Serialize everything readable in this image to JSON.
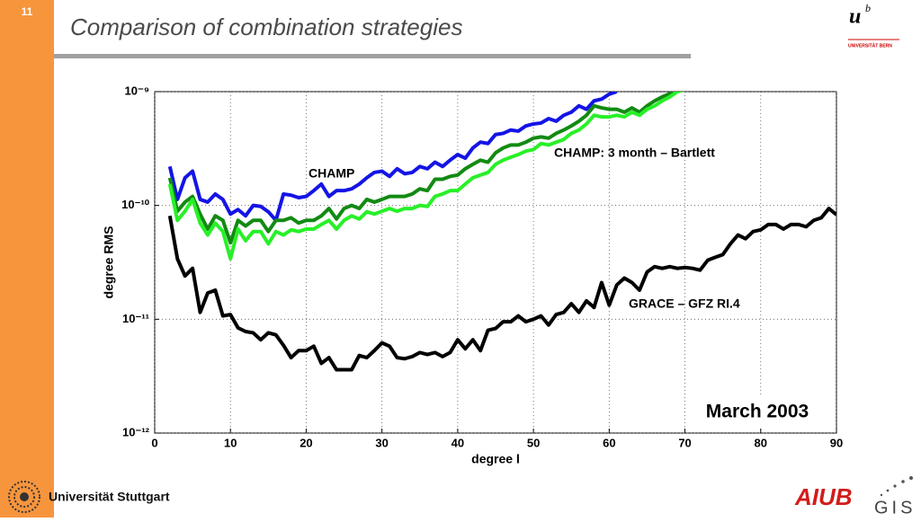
{
  "slide": {
    "page_number": "11",
    "title": "Comparison of combination strategies",
    "logo_bern_mark": "u",
    "logo_bern_sup": "b",
    "logo_bern_text": "UNIVERSITÄT BERN",
    "logo_stuttgart": "Universität Stuttgart",
    "logo_aiub": "AIUB",
    "logo_gis": "GIS"
  },
  "chart_data": {
    "type": "line",
    "xlabel": "degree l",
    "ylabel": "degree RMS",
    "xlim": [
      0,
      90
    ],
    "xticks": [
      0,
      10,
      20,
      30,
      40,
      50,
      60,
      70,
      80,
      90
    ],
    "ylim": [
      1e-12,
      1e-09
    ],
    "log_y": true,
    "grid": true,
    "yticks": [
      {
        "value": 1e-12,
        "label": "10⁻¹²"
      },
      {
        "value": 1e-11,
        "label": "10⁻¹¹"
      },
      {
        "value": 1e-10,
        "label": "10⁻¹⁰"
      },
      {
        "value": 1e-09,
        "label": "10⁻⁹"
      }
    ],
    "annotations": [
      "CHAMP",
      "CHAMP: 3 month – Bartlett",
      "GRACE – GFZ RI.4",
      "March 2003"
    ],
    "series": [
      {
        "color": "#1414e6",
        "x": [
          2,
          3,
          4,
          5,
          6,
          7,
          8,
          9,
          10,
          11,
          12,
          13,
          14,
          15,
          16,
          17,
          18,
          19,
          20,
          21,
          22,
          23,
          24,
          25,
          26,
          27,
          28,
          29,
          30,
          31,
          32,
          33,
          34,
          35,
          36,
          37,
          38,
          39,
          40,
          41,
          42,
          43,
          44,
          45,
          46,
          47,
          48,
          49,
          50,
          51,
          52,
          53,
          54,
          55,
          56,
          57,
          58,
          59,
          60,
          61
        ],
        "values": [
          2.2e-10,
          1.13e-10,
          1.75e-10,
          2e-10,
          1.13e-10,
          1.07e-10,
          1.26e-10,
          1.13e-10,
          8.4e-11,
          9.2e-11,
          8.1e-11,
          1e-10,
          9.8e-11,
          8.8e-11,
          7.4e-11,
          1.26e-10,
          1.23e-10,
          1.17e-10,
          1.2e-10,
          1.35e-10,
          1.54e-10,
          1.2e-10,
          1.35e-10,
          1.35e-10,
          1.4e-10,
          1.54e-10,
          1.75e-10,
          1.95e-10,
          2e-10,
          1.8e-10,
          2.1e-10,
          1.9e-10,
          1.95e-10,
          2.2e-10,
          2.1e-10,
          2.4e-10,
          2.2e-10,
          2.5e-10,
          2.8e-10,
          2.6e-10,
          3.2e-10,
          3.6e-10,
          3.5e-10,
          4.2e-10,
          4.3e-10,
          4.6e-10,
          4.5e-10,
          5e-10,
          5.2e-10,
          5.3e-10,
          5.8e-10,
          5.5e-10,
          6.2e-10,
          6.6e-10,
          7.5e-10,
          7e-10,
          8.3e-10,
          8.6e-10,
          9.5e-10,
          1e-09
        ]
      },
      {
        "color": "#128a12",
        "x": [
          2,
          3,
          4,
          5,
          6,
          7,
          8,
          9,
          10,
          11,
          12,
          13,
          14,
          15,
          16,
          17,
          18,
          19,
          20,
          21,
          22,
          23,
          24,
          25,
          26,
          27,
          28,
          29,
          30,
          31,
          32,
          33,
          34,
          35,
          36,
          37,
          38,
          39,
          40,
          41,
          42,
          43,
          44,
          45,
          46,
          47,
          48,
          49,
          50,
          51,
          52,
          53,
          54,
          55,
          56,
          57,
          58,
          59,
          60,
          61,
          62,
          63,
          64,
          65,
          66,
          67,
          68,
          69,
          70
        ],
        "values": [
          1.75e-10,
          8.9e-11,
          1.07e-10,
          1.2e-10,
          8.4e-11,
          6.2e-11,
          8.1e-11,
          7.4e-11,
          4.7e-11,
          7.4e-11,
          6.6e-11,
          7.4e-11,
          7.4e-11,
          5.9e-11,
          7.4e-11,
          7.4e-11,
          7.8e-11,
          7e-11,
          7.4e-11,
          7.4e-11,
          8.1e-11,
          9.4e-11,
          7.6e-11,
          9.4e-11,
          1e-10,
          9.4e-11,
          1.13e-10,
          1.07e-10,
          1.13e-10,
          1.2e-10,
          1.2e-10,
          1.2e-10,
          1.26e-10,
          1.4e-10,
          1.35e-10,
          1.7e-10,
          1.7e-10,
          1.8e-10,
          1.85e-10,
          2.1e-10,
          2.3e-10,
          2.5e-10,
          2.4e-10,
          2.9e-10,
          3.2e-10,
          3.4e-10,
          3.4e-10,
          3.6e-10,
          3.9e-10,
          4e-10,
          3.9e-10,
          4.3e-10,
          4.6e-10,
          5e-10,
          5.5e-10,
          6.2e-10,
          7.5e-10,
          7.2e-10,
          7e-10,
          7e-10,
          6.6e-10,
          7.2e-10,
          6.6e-10,
          7.5e-10,
          8.3e-10,
          9e-10,
          9.6e-10,
          1e-09,
          1.04e-09
        ]
      },
      {
        "color": "#28f028",
        "x": [
          2,
          3,
          4,
          5,
          6,
          7,
          8,
          9,
          10,
          11,
          12,
          13,
          14,
          15,
          16,
          17,
          18,
          19,
          20,
          21,
          22,
          23,
          24,
          25,
          26,
          27,
          28,
          29,
          30,
          31,
          32,
          33,
          34,
          35,
          36,
          37,
          38,
          39,
          40,
          41,
          42,
          43,
          44,
          45,
          46,
          47,
          48,
          49,
          50,
          51,
          52,
          53,
          54,
          55,
          56,
          57,
          58,
          59,
          60,
          61,
          62,
          63,
          64,
          65,
          66,
          67,
          68,
          69,
          70
        ],
        "values": [
          1.54e-10,
          7.4e-11,
          8.9e-11,
          1.13e-10,
          7e-11,
          5.5e-11,
          7e-11,
          5.9e-11,
          3.4e-11,
          6.2e-11,
          4.9e-11,
          5.9e-11,
          5.9e-11,
          4.6e-11,
          5.9e-11,
          5.5e-11,
          6.1e-11,
          5.9e-11,
          6.2e-11,
          6.2e-11,
          6.8e-11,
          7.4e-11,
          6.2e-11,
          7.4e-11,
          8.1e-11,
          7.6e-11,
          8.8e-11,
          8.4e-11,
          8.9e-11,
          9.4e-11,
          8.9e-11,
          9.4e-11,
          9.4e-11,
          1e-10,
          9.8e-11,
          1.2e-10,
          1.26e-10,
          1.35e-10,
          1.35e-10,
          1.54e-10,
          1.75e-10,
          1.85e-10,
          1.95e-10,
          2.3e-10,
          2.5e-10,
          2.65e-10,
          2.8e-10,
          3e-10,
          3.1e-10,
          3.5e-10,
          3.4e-10,
          3.6e-10,
          3.8e-10,
          4.3e-10,
          4.6e-10,
          5.2e-10,
          6.2e-10,
          6e-10,
          6e-10,
          6.2e-10,
          6e-10,
          6.6e-10,
          6.2e-10,
          7e-10,
          7.5e-10,
          8.3e-10,
          9e-10,
          1e-09,
          1.04e-09
        ]
      },
      {
        "color": "#000000",
        "x": [
          2,
          3,
          4,
          5,
          6,
          7,
          8,
          9,
          10,
          11,
          12,
          13,
          14,
          15,
          16,
          17,
          18,
          19,
          20,
          21,
          22,
          23,
          24,
          25,
          26,
          27,
          28,
          29,
          30,
          31,
          32,
          33,
          34,
          35,
          36,
          37,
          38,
          39,
          40,
          41,
          42,
          43,
          44,
          45,
          46,
          47,
          48,
          49,
          50,
          51,
          52,
          53,
          54,
          55,
          56,
          57,
          58,
          59,
          60,
          61,
          62,
          63,
          64,
          65,
          66,
          67,
          68,
          69,
          70,
          71,
          72,
          73,
          74,
          75,
          76,
          77,
          78,
          79,
          80,
          81,
          82,
          83,
          84,
          85,
          86,
          87,
          88,
          89,
          90
        ],
        "values": [
          8.1e-11,
          3.4e-11,
          2.4e-11,
          2.8e-11,
          1.15e-11,
          1.7e-11,
          1.8e-11,
          1.07e-11,
          1.1e-11,
          8.4e-12,
          7.8e-12,
          7.6e-12,
          6.6e-12,
          7.6e-12,
          7.3e-12,
          5.9e-12,
          4.6e-12,
          5.3e-12,
          5.3e-12,
          5.8e-12,
          4.1e-12,
          4.6e-12,
          3.6e-12,
          3.6e-12,
          3.6e-12,
          4.8e-12,
          4.6e-12,
          5.3e-12,
          6.2e-12,
          5.8e-12,
          4.6e-12,
          4.5e-12,
          4.7e-12,
          5.1e-12,
          4.9e-12,
          5.1e-12,
          4.7e-12,
          5.1e-12,
          6.6e-12,
          5.5e-12,
          6.6e-12,
          5.3e-12,
          8e-12,
          8.3e-12,
          9.5e-12,
          9.5e-12,
          1.07e-11,
          9.5e-12,
          1e-11,
          1.07e-11,
          8.9e-12,
          1.1e-11,
          1.15e-11,
          1.37e-11,
          1.15e-11,
          1.45e-11,
          1.27e-11,
          2.1e-11,
          1.33e-11,
          2e-11,
          2.3e-11,
          2.1e-11,
          1.8e-11,
          2.6e-11,
          2.9e-11,
          2.8e-11,
          2.9e-11,
          2.8e-11,
          2.85e-11,
          2.8e-11,
          2.7e-11,
          3.3e-11,
          3.5e-11,
          3.7e-11,
          4.6e-11,
          5.5e-11,
          5.1e-11,
          5.9e-11,
          6.1e-11,
          6.8e-11,
          6.8e-11,
          6.2e-11,
          6.8e-11,
          6.8e-11,
          6.5e-11,
          7.4e-11,
          7.8e-11,
          9.4e-11,
          8.3e-11
        ]
      }
    ]
  }
}
